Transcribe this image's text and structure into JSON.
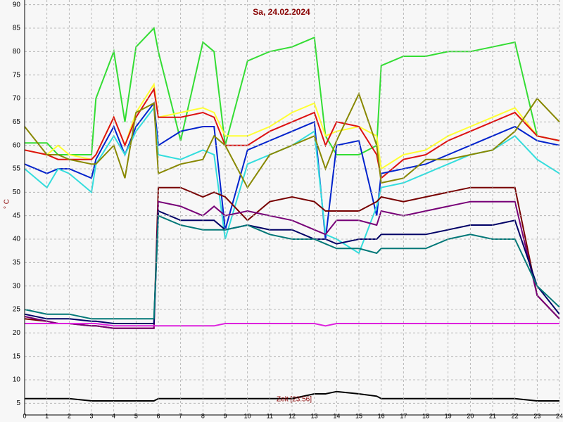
{
  "chart_data": {
    "type": "line",
    "title": "Sa, 24.02.2024",
    "y_label": "° C",
    "x_label": "Zeit [23:56]",
    "x": [
      0,
      1,
      1.5,
      2,
      3,
      3.2,
      4,
      4.5,
      5,
      5.8,
      6,
      7,
      8,
      8.5,
      9,
      10,
      11,
      12,
      13,
      13.5,
      14,
      15,
      15.8,
      16,
      17,
      18,
      19,
      20,
      21,
      22,
      23,
      24
    ],
    "series": [
      {
        "color": "#33dd33",
        "values": [
          60.5,
          60.5,
          58,
          58,
          58,
          70,
          80,
          65,
          81,
          85,
          80,
          61,
          82,
          80,
          60,
          78,
          80,
          81,
          83,
          62,
          58,
          58,
          60,
          77,
          79,
          79,
          80,
          80,
          81,
          82,
          62,
          61
        ]
      },
      {
        "color": "#ffff33",
        "values": [
          59,
          58,
          60,
          58,
          57,
          58,
          66,
          60,
          67,
          73,
          66,
          67,
          68,
          67,
          62,
          62,
          64,
          67,
          69,
          62,
          63,
          64,
          62,
          55,
          58,
          59,
          62,
          64,
          66,
          68,
          62,
          61
        ]
      },
      {
        "color": "#dd1111",
        "values": [
          59,
          58,
          57,
          57,
          57,
          58,
          66,
          60,
          66,
          72,
          66,
          66,
          67,
          66,
          60,
          60,
          63,
          65,
          67,
          60,
          65,
          64,
          58,
          53,
          57,
          58,
          61,
          63,
          65,
          67,
          62,
          61
        ]
      },
      {
        "color": "#0022cc",
        "values": [
          56,
          54,
          55,
          55,
          53,
          57,
          64,
          58,
          64,
          69,
          60,
          63,
          64,
          64,
          42,
          59,
          61,
          63,
          65,
          40,
          60,
          61,
          45,
          54,
          55,
          56,
          58,
          60,
          62,
          64,
          61,
          60
        ]
      },
      {
        "color": "#33dddd",
        "values": [
          55,
          51,
          55,
          54,
          50,
          56,
          62,
          58,
          63,
          68,
          58,
          57,
          59,
          58,
          40,
          56,
          58,
          60,
          63,
          41,
          40,
          37,
          47,
          51,
          52,
          54,
          56,
          58,
          59,
          62,
          57,
          54
        ]
      },
      {
        "color": "#888800",
        "values": [
          64,
          58,
          58,
          57,
          56,
          56,
          60,
          53,
          67,
          69,
          54,
          56,
          57,
          62,
          60,
          51,
          58,
          60,
          62,
          55,
          61,
          71,
          60,
          52,
          53,
          57,
          57,
          58,
          59,
          63,
          70,
          65
        ]
      },
      {
        "color": "#770000",
        "values": [
          23,
          22.5,
          22,
          22,
          21.5,
          21.5,
          21,
          21,
          21,
          21,
          51,
          51,
          49,
          50,
          49,
          44,
          48,
          49,
          48,
          46,
          46,
          46,
          48,
          49,
          48,
          49,
          50,
          51,
          51,
          51,
          28,
          23
        ]
      },
      {
        "color": "#770077",
        "values": [
          23.5,
          22.5,
          22,
          22,
          21.5,
          21.5,
          21,
          21,
          21,
          21,
          48,
          47,
          45,
          47,
          45,
          46,
          45,
          44,
          42,
          41,
          44,
          44,
          43,
          46,
          45,
          46,
          47,
          48,
          48,
          48,
          28,
          23
        ]
      },
      {
        "color": "#000066",
        "values": [
          24,
          23,
          23,
          23,
          22.5,
          22.5,
          22,
          22,
          22,
          22,
          46,
          44,
          44,
          44,
          42,
          43,
          42,
          42,
          40,
          40,
          39,
          40,
          40,
          41,
          41,
          41,
          42,
          43,
          43,
          44,
          30,
          24
        ]
      },
      {
        "color": "#007777",
        "values": [
          25,
          24,
          24,
          24,
          23,
          23,
          23,
          23,
          23,
          23,
          45,
          43,
          42,
          42,
          42,
          43,
          41,
          40,
          40,
          39,
          38,
          38,
          37,
          38,
          38,
          38,
          40,
          41,
          40,
          40,
          30,
          25.5
        ]
      },
      {
        "color": "#dd22dd",
        "values": [
          22,
          22,
          22,
          22,
          22,
          22,
          21.5,
          21.5,
          21.5,
          21.5,
          21.5,
          21.5,
          21.5,
          21.5,
          22,
          22,
          22,
          22,
          22,
          21.5,
          22,
          22,
          22,
          22,
          22,
          22,
          22,
          22,
          22,
          22,
          22,
          22
        ]
      },
      {
        "color": "#000000",
        "values": [
          6,
          6,
          6,
          6,
          5.5,
          5.5,
          5.5,
          5.5,
          5.5,
          5.5,
          6,
          6,
          6,
          6,
          6,
          6,
          6,
          6,
          7,
          7,
          7.5,
          7,
          6.5,
          6,
          6,
          6,
          6,
          6,
          6,
          6,
          5.5,
          5.5
        ]
      }
    ],
    "xlim": [
      0,
      24
    ],
    "ylim": [
      2.5,
      91
    ],
    "xticks": [
      0,
      1,
      2,
      3,
      4,
      5,
      6,
      7,
      8,
      9,
      10,
      11,
      12,
      13,
      14,
      15,
      16,
      17,
      18,
      19,
      20,
      21,
      22,
      23,
      24
    ],
    "yticks": [
      5,
      10,
      15,
      20,
      25,
      30,
      35,
      40,
      45,
      50,
      55,
      60,
      65,
      70,
      75,
      80,
      85,
      90
    ],
    "grid": true
  }
}
